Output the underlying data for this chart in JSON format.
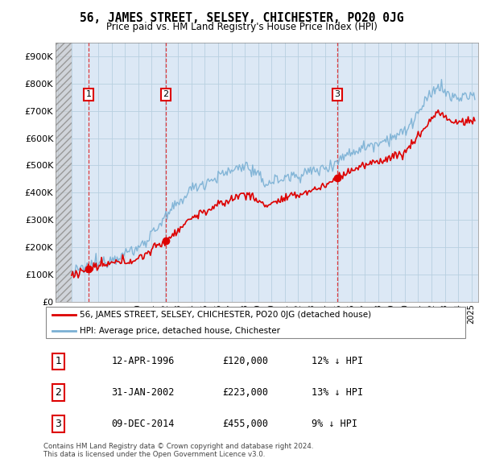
{
  "title": "56, JAMES STREET, SELSEY, CHICHESTER, PO20 0JG",
  "subtitle": "Price paid vs. HM Land Registry's House Price Index (HPI)",
  "ylim": [
    0,
    950000
  ],
  "yticks": [
    0,
    100000,
    200000,
    300000,
    400000,
    500000,
    600000,
    700000,
    800000,
    900000
  ],
  "ytick_labels": [
    "£0",
    "£100K",
    "£200K",
    "£300K",
    "£400K",
    "£500K",
    "£600K",
    "£700K",
    "£800K",
    "£900K"
  ],
  "xlim_start": 1993.8,
  "xlim_end": 2025.5,
  "sale_color": "#dd0000",
  "hpi_color": "#7ab0d4",
  "sale_label": "56, JAMES STREET, SELSEY, CHICHESTER, PO20 0JG (detached house)",
  "hpi_label": "HPI: Average price, detached house, Chichester",
  "transactions": [
    {
      "num": 1,
      "date_str": "12-APR-1996",
      "date_x": 1996.28,
      "price": 120000,
      "pct": "12%",
      "dir": "↓"
    },
    {
      "num": 2,
      "date_str": "31-JAN-2002",
      "date_x": 2002.08,
      "price": 223000,
      "pct": "13%",
      "dir": "↓"
    },
    {
      "num": 3,
      "date_str": "09-DEC-2014",
      "date_x": 2014.93,
      "price": 455000,
      "pct": "9%",
      "dir": "↓"
    }
  ],
  "footer": "Contains HM Land Registry data © Crown copyright and database right 2024.\nThis data is licensed under the Open Government Licence v3.0.",
  "hatch_end": 1995.0,
  "plot_bg": "#dce8f5",
  "grid_color": "#b8cfe0"
}
